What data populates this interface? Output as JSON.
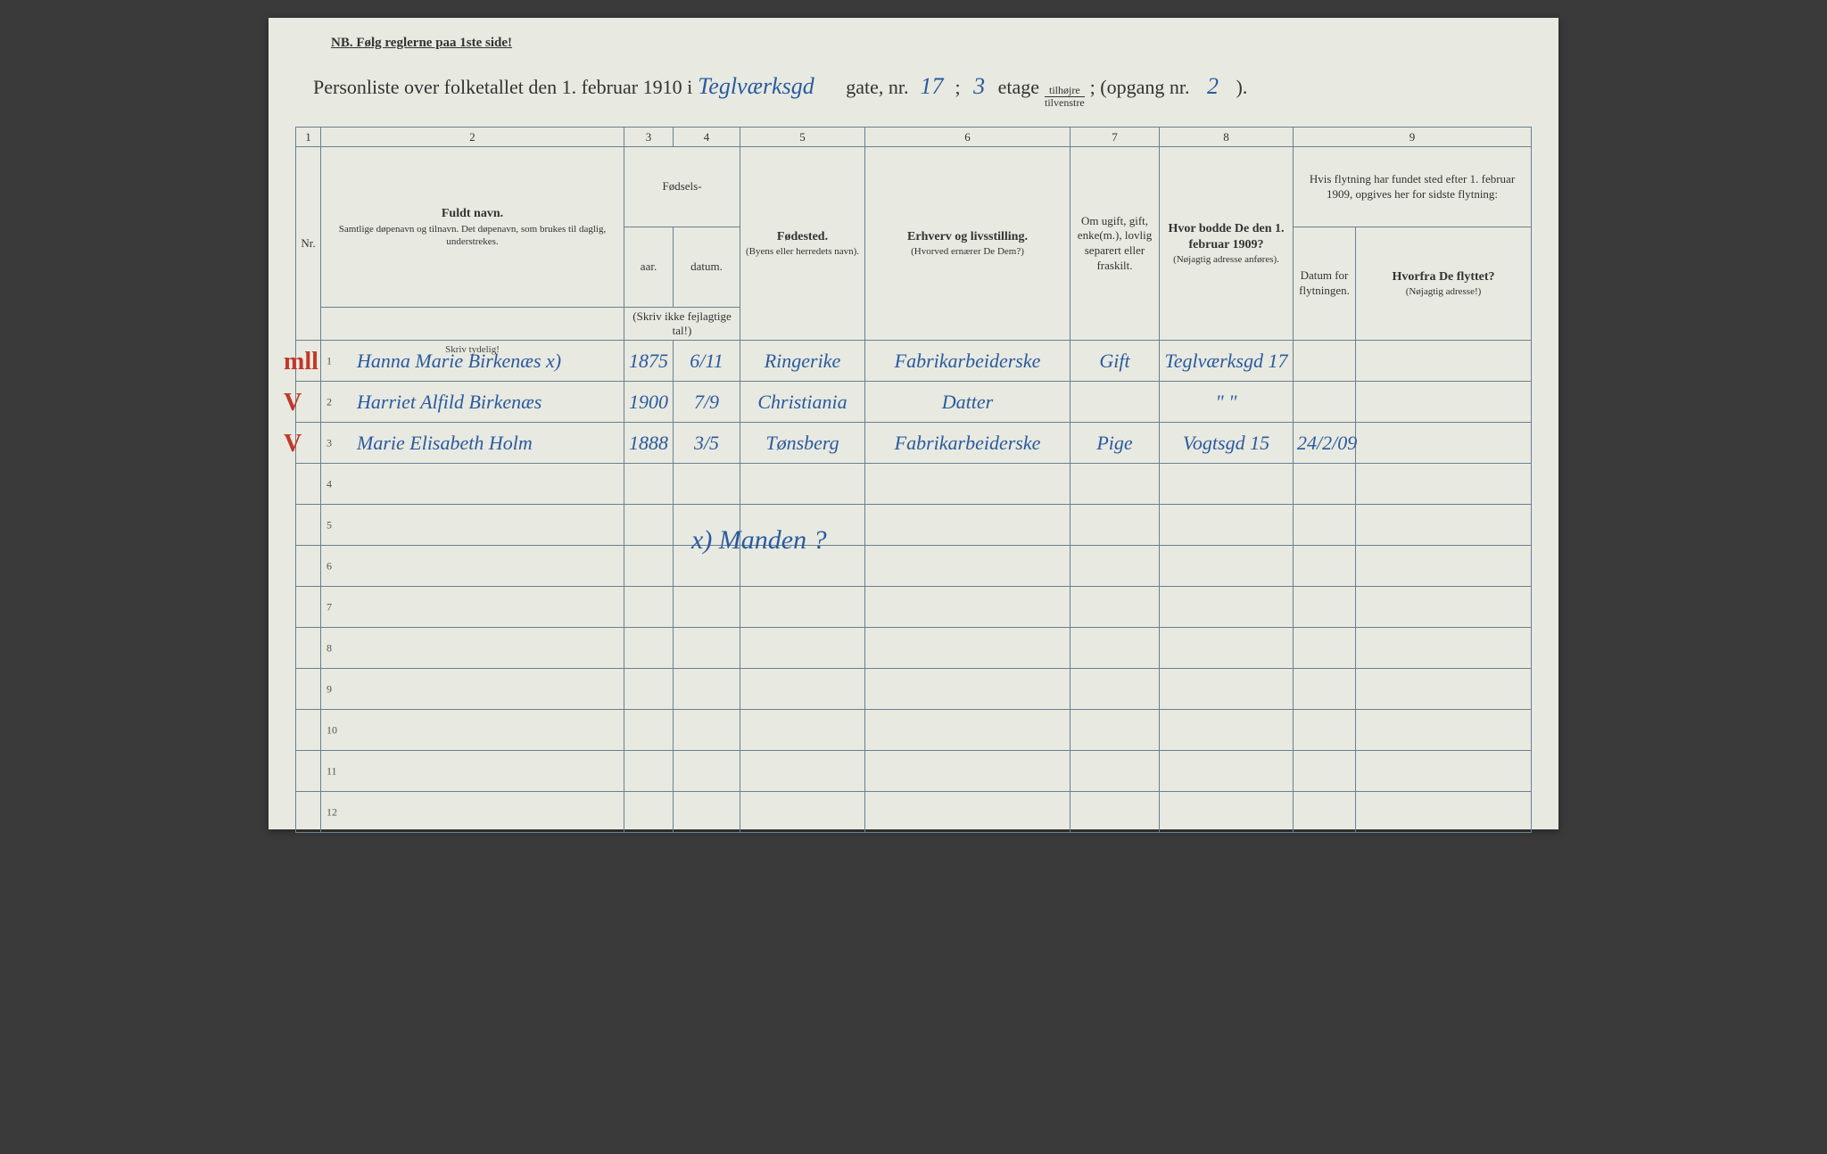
{
  "nb_line": "NB.  Følg reglerne paa 1ste side!",
  "title": {
    "prefix": "Personliste over folketallet den 1. februar 1910 i",
    "street": "Teglværksgd",
    "gate_label": "gate, nr.",
    "nr": "17",
    "semicolon": ";",
    "etage_val": "3",
    "etage_label": "etage",
    "tilhojre_top": "tilhøjre",
    "tilhojre_bot": "tilvenstre",
    "opgang_label": "; (opgang nr.",
    "opgang_val": "2",
    "close": ")."
  },
  "columns": {
    "nums": [
      "1",
      "2",
      "3",
      "4",
      "5",
      "6",
      "7",
      "8",
      "9"
    ],
    "nr": "Nr.",
    "navn_main": "Fuldt navn.",
    "navn_sub": "Samtlige døpenavn og tilnavn. Det døpenavn, som brukes til daglig, understrekes.",
    "fodsels": "Fødsels-",
    "aar": "aar.",
    "datum": "datum.",
    "aar_note": "(Skriv ikke fejlagtige tal!)",
    "fodested_main": "Fødested.",
    "fodested_sub": "(Byens eller herredets navn).",
    "erhverv_main": "Erhverv og livsstilling.",
    "erhverv_sub": "(Hvorved ernærer De Dem?)",
    "ugift": "Om ugift, gift, enke(m.), lovlig separert eller fraskilt.",
    "bodde_main": "Hvor bodde De den 1. februar 1909?",
    "bodde_sub": "(Nøjagtig adresse anføres).",
    "col9_top": "Hvis flytning har fundet sted efter 1. februar 1909, opgives her for sidste flytning:",
    "col9_dato": "Datum for flytningen.",
    "col9_fra_main": "Hvorfra De flyttet?",
    "col9_fra_sub": "(Nøjagtig adresse!)",
    "skriv_tydelig": "Skriv tydelig!"
  },
  "rows": [
    {
      "red": "mll",
      "navn": "Hanna Marie Birkenæs x)",
      "aar": "1875",
      "dato": "6/11",
      "fodested": "Ringerike",
      "erhverv": "Fabrikarbeiderske",
      "ugift": "Gift",
      "bodde": "Teglværksgd 17",
      "flyt_dato": "",
      "flyt_fra": ""
    },
    {
      "red": "V",
      "navn": "Harriet Alfild Birkenæs",
      "aar": "1900",
      "dato": "7/9",
      "fodested": "Christiania",
      "erhverv": "Datter",
      "ugift": "",
      "bodde": "\"        \"",
      "flyt_dato": "",
      "flyt_fra": ""
    },
    {
      "red": "V",
      "navn": "Marie Elisabeth Holm",
      "aar": "1888",
      "dato": "3/5",
      "fodested": "Tønsberg",
      "erhverv": "Fabrikarbeiderske",
      "ugift": "Pige",
      "bodde": "Vogtsgd 15",
      "flyt_dato": "24/2/09",
      "flyt_fra": ""
    }
  ],
  "row_numbers": [
    "1",
    "2",
    "3",
    "4",
    "5",
    "6",
    "7",
    "8",
    "9",
    "10",
    "11",
    "12"
  ],
  "annotation": "x) Manden ?",
  "colors": {
    "paper": "#e8e9e0",
    "rule": "#6a8090",
    "ink_print": "#333333",
    "ink_hand": "#2a5aa0",
    "ink_red": "#c0392b"
  }
}
